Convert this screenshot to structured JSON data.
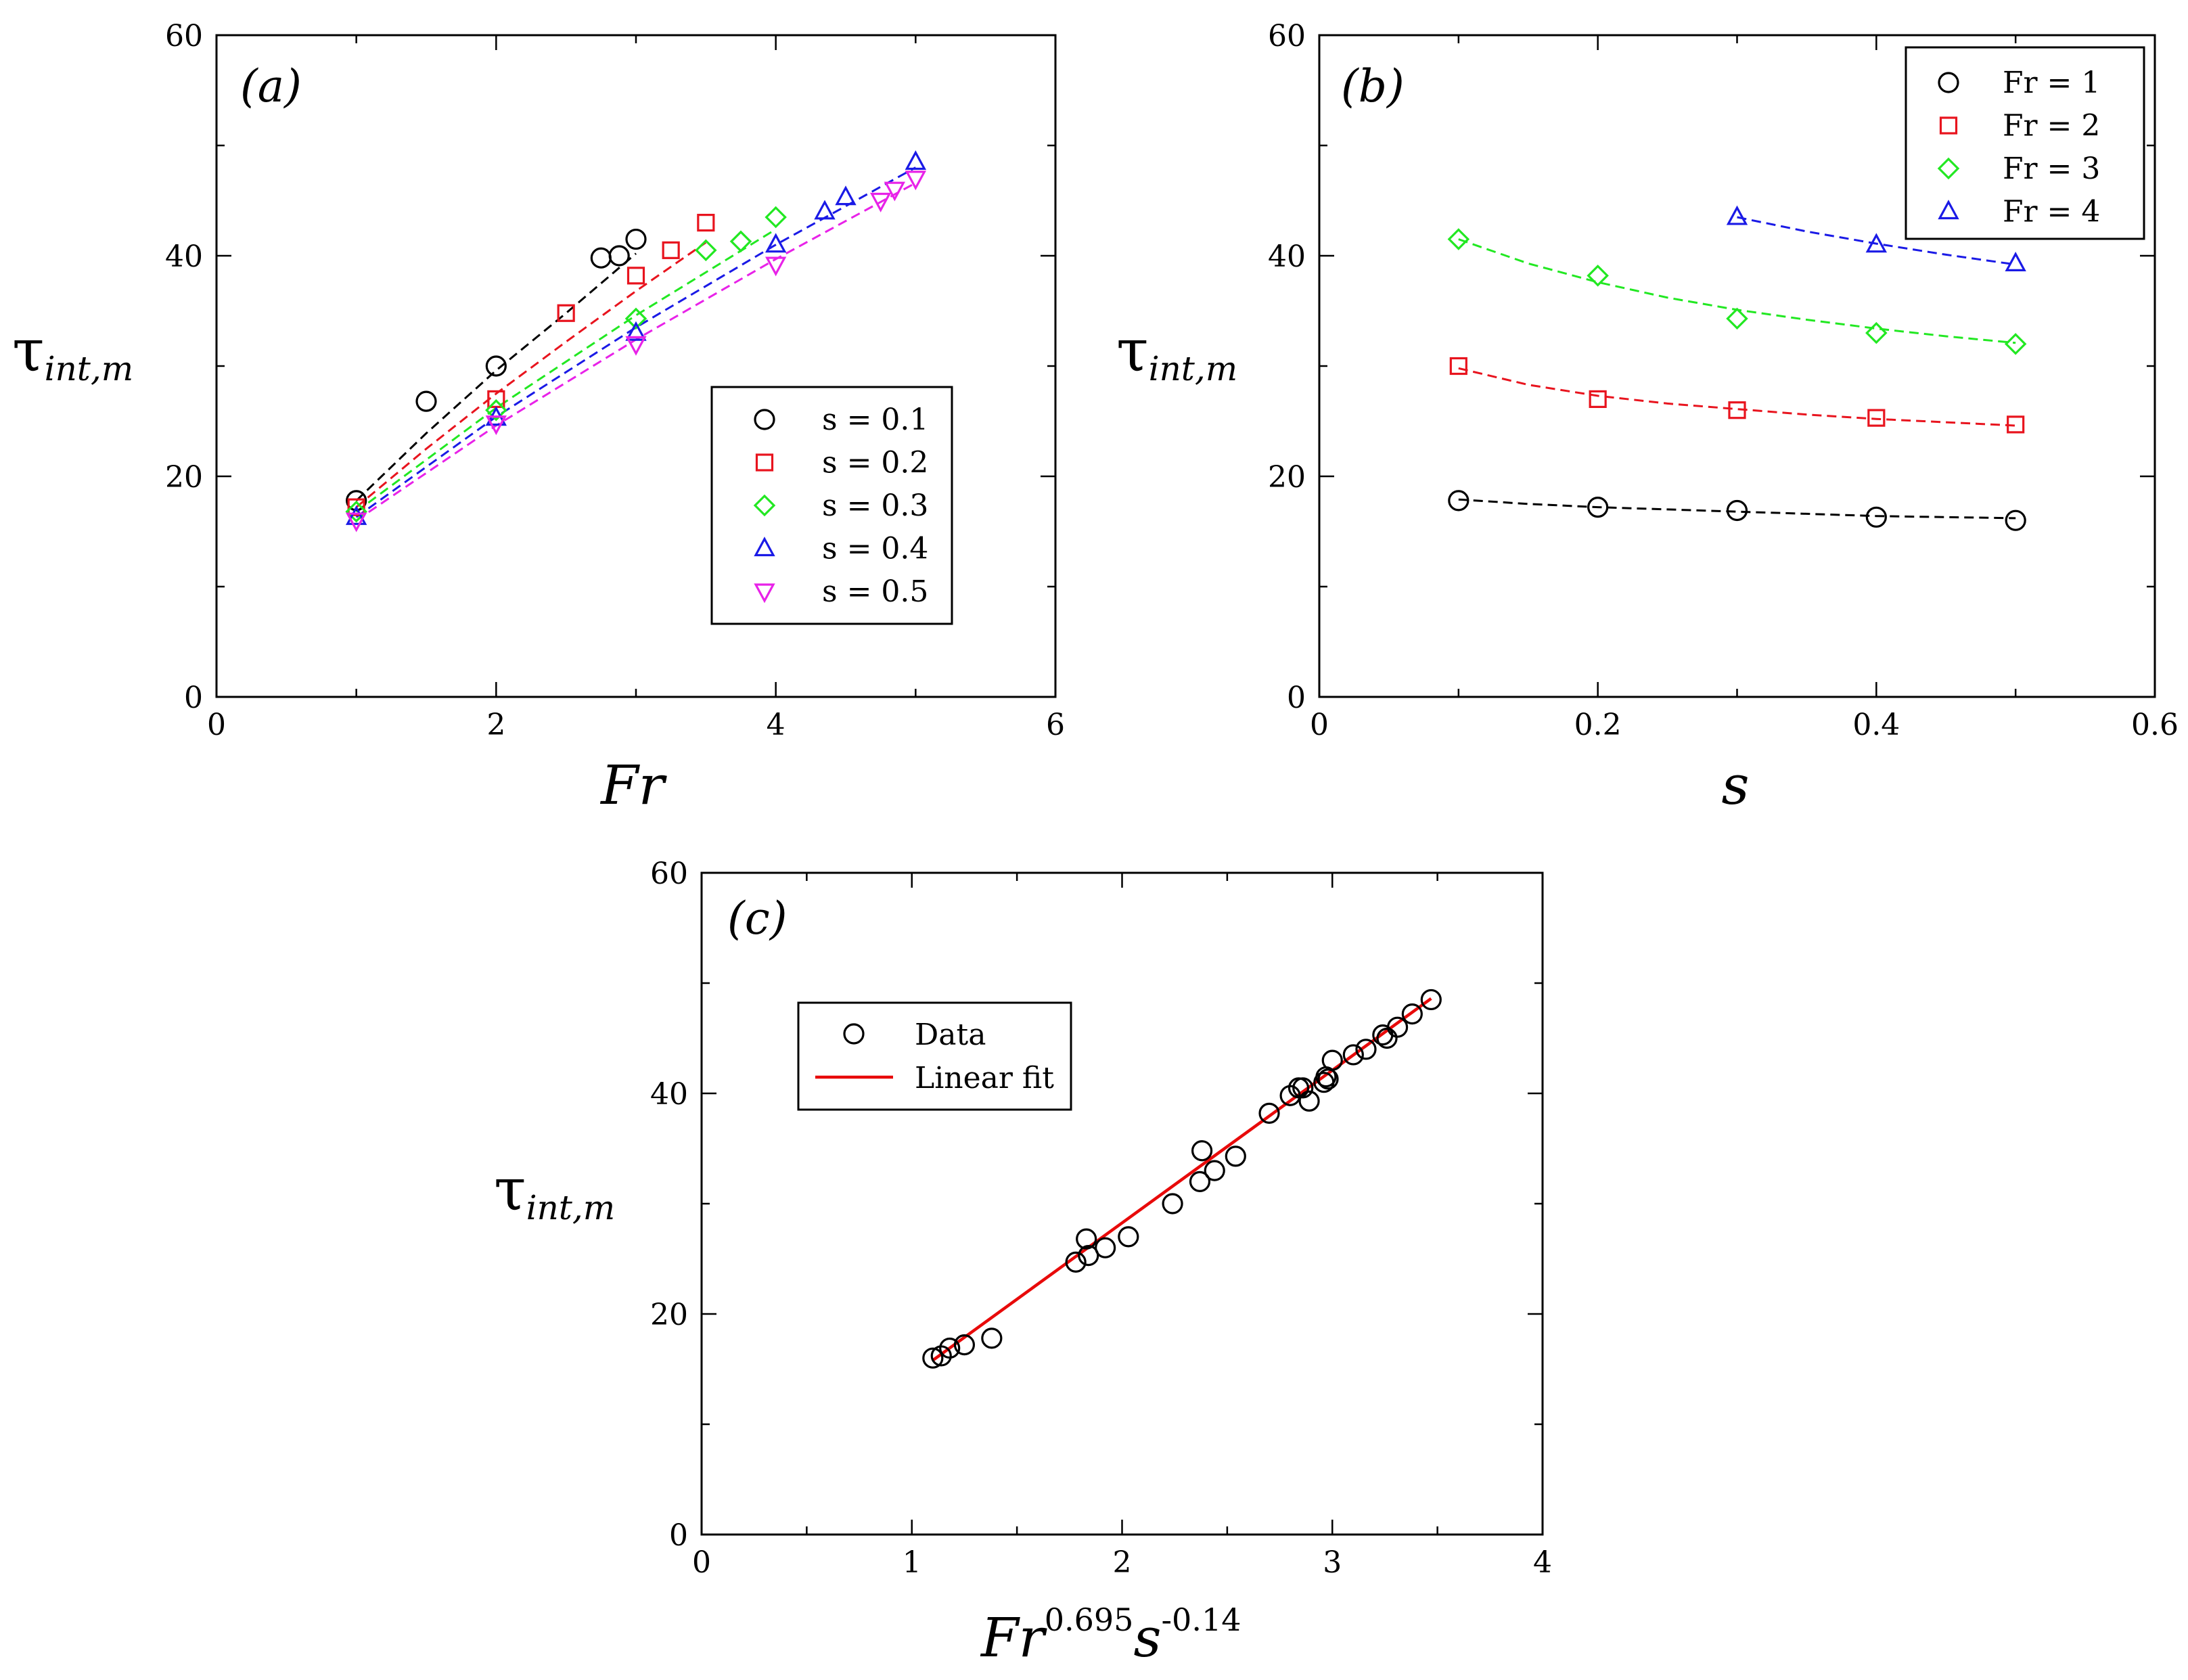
{
  "figure": {
    "colors": {
      "black": "#000000",
      "red": "#e8141e",
      "green": "#22e822",
      "blue": "#1a1ae6",
      "magenta": "#e822e8",
      "fit": "#e80a0a"
    },
    "ylabel_main": "τ",
    "ylabel_sub": "int,m"
  },
  "chart_data": [
    {
      "id": "a",
      "type": "scatter",
      "panel_label": "(a)",
      "xlabel": "Fr",
      "ylabel": "τint,m",
      "xlim": [
        0,
        6
      ],
      "ylim": [
        0,
        60
      ],
      "xticks": [
        0,
        2,
        4,
        6
      ],
      "yticks": [
        0,
        20,
        40,
        60
      ],
      "x_tick_labels": [
        "0",
        "2",
        "4",
        "6"
      ],
      "y_tick_labels": [
        "0",
        "20",
        "40",
        "60"
      ],
      "legend_position": "bottom-right",
      "series": [
        {
          "name": "s = 0.1",
          "marker": "circle",
          "color": "#000000",
          "points": [
            [
              1,
              17.8
            ],
            [
              1.5,
              26.8
            ],
            [
              2,
              30
            ],
            [
              2.75,
              39.8
            ],
            [
              2.88,
              40
            ],
            [
              3,
              41.5
            ]
          ],
          "fit": [
            [
              1,
              17.8
            ],
            [
              1.5,
              23.9
            ],
            [
              2,
              29.6
            ],
            [
              2.5,
              34.8
            ],
            [
              3,
              40.2
            ]
          ]
        },
        {
          "name": "s = 0.2",
          "marker": "square",
          "color": "#e8141e",
          "points": [
            [
              1,
              17.2
            ],
            [
              2,
              27
            ],
            [
              2.5,
              34.8
            ],
            [
              3,
              38.2
            ],
            [
              3.25,
              40.5
            ],
            [
              3.5,
              43
            ]
          ],
          "fit": [
            [
              1,
              17.2
            ],
            [
              1.5,
              22.5
            ],
            [
              2,
              27.5
            ],
            [
              2.5,
              32.2
            ],
            [
              3,
              36.8
            ],
            [
              3.5,
              41.2
            ]
          ]
        },
        {
          "name": "s = 0.3",
          "marker": "diamond",
          "color": "#22e822",
          "points": [
            [
              1,
              16.8
            ],
            [
              2,
              26
            ],
            [
              3,
              34.3
            ],
            [
              3.5,
              40.5
            ],
            [
              3.75,
              41.3
            ],
            [
              4,
              43.5
            ]
          ],
          "fit": [
            [
              1,
              16.8
            ],
            [
              2,
              26.2
            ],
            [
              3,
              34.6
            ],
            [
              4,
              42.4
            ]
          ]
        },
        {
          "name": "s = 0.4",
          "marker": "triangle-up",
          "color": "#1a1ae6",
          "points": [
            [
              1,
              16.3
            ],
            [
              2,
              25.3
            ],
            [
              3,
              33
            ],
            [
              4,
              41
            ],
            [
              4.35,
              44
            ],
            [
              4.5,
              45.3
            ],
            [
              5,
              48.5
            ]
          ],
          "fit": [
            [
              1,
              16.3
            ],
            [
              2,
              25.4
            ],
            [
              3,
              33.5
            ],
            [
              4,
              41
            ],
            [
              5,
              48
            ]
          ]
        },
        {
          "name": "s = 0.5",
          "marker": "triangle-down",
          "color": "#e822e8",
          "points": [
            [
              1,
              16
            ],
            [
              2,
              24.8
            ],
            [
              3,
              32
            ],
            [
              4,
              39.2
            ],
            [
              4.75,
              45
            ],
            [
              4.85,
              46
            ],
            [
              5,
              47
            ]
          ],
          "fit": [
            [
              1,
              16
            ],
            [
              2,
              24.6
            ],
            [
              3,
              32.4
            ],
            [
              4,
              39.7
            ],
            [
              5,
              46.6
            ]
          ]
        }
      ]
    },
    {
      "id": "b",
      "type": "scatter",
      "panel_label": "(b)",
      "xlabel": "s",
      "ylabel": "τint,m",
      "xlim": [
        0,
        0.6
      ],
      "ylim": [
        0,
        60
      ],
      "xticks": [
        0,
        0.2,
        0.4,
        0.6
      ],
      "yticks": [
        0,
        20,
        40,
        60
      ],
      "x_tick_labels": [
        "0",
        "0.2",
        "0.4",
        "0.6"
      ],
      "y_tick_labels": [
        "0",
        "20",
        "40",
        "60"
      ],
      "legend_position": "top-right",
      "series": [
        {
          "name": "Fr = 1",
          "marker": "circle",
          "color": "#000000",
          "points": [
            [
              0.1,
              17.8
            ],
            [
              0.2,
              17.2
            ],
            [
              0.3,
              16.9
            ],
            [
              0.4,
              16.3
            ],
            [
              0.5,
              16
            ]
          ],
          "fit": [
            [
              0.1,
              17.9
            ],
            [
              0.15,
              17.5
            ],
            [
              0.2,
              17.2
            ],
            [
              0.25,
              17
            ],
            [
              0.3,
              16.8
            ],
            [
              0.35,
              16.6
            ],
            [
              0.4,
              16.4
            ],
            [
              0.45,
              16.3
            ],
            [
              0.5,
              16.2
            ]
          ]
        },
        {
          "name": "Fr = 2",
          "marker": "square",
          "color": "#e8141e",
          "points": [
            [
              0.1,
              30
            ],
            [
              0.2,
              27
            ],
            [
              0.3,
              26
            ],
            [
              0.4,
              25.3
            ],
            [
              0.5,
              24.7
            ]
          ],
          "fit": [
            [
              0.1,
              29.8
            ],
            [
              0.15,
              28.3
            ],
            [
              0.2,
              27.3
            ],
            [
              0.25,
              26.6
            ],
            [
              0.3,
              26.1
            ],
            [
              0.35,
              25.6
            ],
            [
              0.4,
              25.2
            ],
            [
              0.45,
              24.9
            ],
            [
              0.5,
              24.6
            ]
          ]
        },
        {
          "name": "Fr = 3",
          "marker": "diamond",
          "color": "#22e822",
          "points": [
            [
              0.1,
              41.5
            ],
            [
              0.2,
              38.2
            ],
            [
              0.3,
              34.3
            ],
            [
              0.4,
              33
            ],
            [
              0.5,
              32
            ]
          ],
          "fit": [
            [
              0.1,
              41.5
            ],
            [
              0.15,
              39.3
            ],
            [
              0.2,
              37.6
            ],
            [
              0.25,
              36.2
            ],
            [
              0.3,
              35.1
            ],
            [
              0.35,
              34.2
            ],
            [
              0.4,
              33.4
            ],
            [
              0.45,
              32.7
            ],
            [
              0.5,
              32.1
            ]
          ]
        },
        {
          "name": "Fr = 4",
          "marker": "triangle-up",
          "color": "#1a1ae6",
          "points": [
            [
              0.3,
              43.5
            ],
            [
              0.4,
              41
            ],
            [
              0.5,
              39.3
            ]
          ],
          "fit": [
            [
              0.3,
              43.5
            ],
            [
              0.35,
              42.2
            ],
            [
              0.4,
              41.1
            ],
            [
              0.45,
              40.1
            ],
            [
              0.5,
              39.2
            ]
          ]
        }
      ]
    },
    {
      "id": "c",
      "type": "scatter",
      "panel_label": "(c)",
      "xlabel": "Fr^0.695 s^-0.14",
      "xlabel_base": "Fr",
      "xlabel_exp1": "0.695",
      "xlabel_var2": "s",
      "xlabel_exp2": "-0.14",
      "ylabel": "τint,m",
      "xlim": [
        0,
        4
      ],
      "ylim": [
        0,
        60
      ],
      "xticks": [
        0,
        1,
        2,
        3,
        4
      ],
      "yticks": [
        0,
        20,
        40,
        60
      ],
      "x_tick_labels": [
        "0",
        "1",
        "2",
        "3",
        "4"
      ],
      "y_tick_labels": [
        "0",
        "20",
        "40",
        "60"
      ],
      "legend_position": "top-left",
      "legend": [
        "Data",
        "Linear fit"
      ],
      "data_points": [
        [
          1.1,
          16
        ],
        [
          1.14,
          16.2
        ],
        [
          1.18,
          16.9
        ],
        [
          1.25,
          17.2
        ],
        [
          1.38,
          17.8
        ],
        [
          1.78,
          24.7
        ],
        [
          1.84,
          25.3
        ],
        [
          1.83,
          26.8
        ],
        [
          1.92,
          26
        ],
        [
          2.03,
          27
        ],
        [
          2.24,
          30
        ],
        [
          2.37,
          32
        ],
        [
          2.38,
          34.8
        ],
        [
          2.44,
          33
        ],
        [
          2.54,
          34.3
        ],
        [
          2.7,
          38.2
        ],
        [
          2.8,
          39.8
        ],
        [
          2.84,
          40.5
        ],
        [
          2.86,
          40.5
        ],
        [
          2.89,
          39.3
        ],
        [
          2.96,
          41
        ],
        [
          2.97,
          41.5
        ],
        [
          2.98,
          41.3
        ],
        [
          3,
          43
        ],
        [
          3.1,
          43.5
        ],
        [
          3.16,
          44
        ],
        [
          3.24,
          45.3
        ],
        [
          3.26,
          45
        ],
        [
          3.31,
          46
        ],
        [
          3.38,
          47.2
        ],
        [
          3.47,
          48.5
        ]
      ],
      "fit_line": [
        [
          1.1,
          15.8
        ],
        [
          3.47,
          48.6
        ]
      ]
    }
  ]
}
